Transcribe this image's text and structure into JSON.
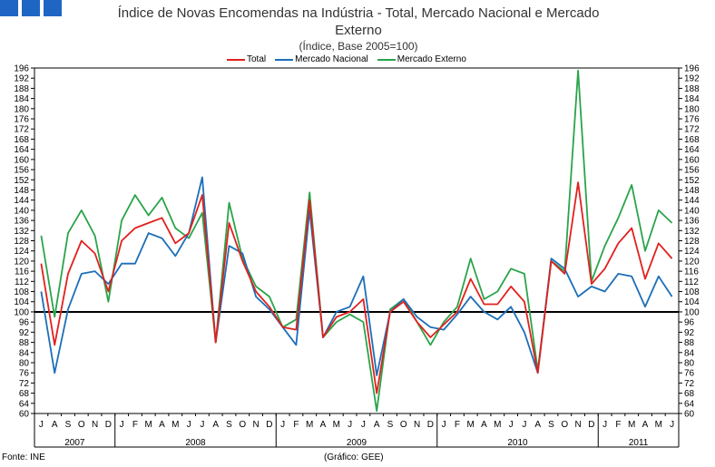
{
  "header": {
    "title_line1": "Índice de Novas Encomendas na Indústria - Total, Mercado Nacional e Mercado",
    "title_line2": "Externo",
    "subtitle": "(Índice, Base 2005=100)"
  },
  "footer": {
    "source": "Fonte: INE",
    "credit": "(Gráfico: GEE)"
  },
  "colors": {
    "logo": "#1f66c4"
  },
  "chart_data": {
    "type": "line",
    "title": "Índice de Novas Encomendas na Indústria - Total, Mercado Nacional e Mercado Externo",
    "ylim": [
      60,
      196
    ],
    "ytick_step": 4,
    "reference_line": 100,
    "month_labels": [
      "J",
      "A",
      "S",
      "O",
      "N",
      "D",
      "J",
      "F",
      "M",
      "A",
      "M",
      "J",
      "J",
      "A",
      "S",
      "O",
      "N",
      "D",
      "J",
      "F",
      "M",
      "A",
      "M",
      "J",
      "J",
      "A",
      "S",
      "O",
      "N",
      "D",
      "J",
      "F",
      "M",
      "A",
      "M",
      "J",
      "J",
      "A",
      "S",
      "O",
      "N",
      "D",
      "J",
      "F",
      "M",
      "A",
      "M",
      "J"
    ],
    "year_groups": [
      {
        "label": "2007",
        "count": 6
      },
      {
        "label": "2008",
        "count": 12
      },
      {
        "label": "2009",
        "count": 12
      },
      {
        "label": "2010",
        "count": 12
      },
      {
        "label": "2011",
        "count": 6
      }
    ],
    "series": [
      {
        "name": "Total",
        "color": "#e0211e",
        "values": [
          119,
          87,
          115,
          128,
          123,
          108,
          128,
          133,
          135,
          137,
          127,
          131,
          146,
          88,
          135,
          120,
          108,
          102,
          94,
          93,
          144,
          90,
          98,
          100,
          105,
          68,
          100,
          104,
          96,
          90,
          95,
          100,
          113,
          103,
          103,
          110,
          104,
          76,
          120,
          115,
          151,
          111,
          117,
          127,
          133,
          113,
          127,
          121
        ]
      },
      {
        "name": "Mercado Nacional",
        "color": "#1c6fb8",
        "values": [
          108,
          76,
          101,
          115,
          116,
          111,
          119,
          119,
          131,
          129,
          122,
          131,
          153,
          88,
          126,
          123,
          106,
          101,
          94,
          87,
          140,
          90,
          100,
          102,
          114,
          75,
          100,
          105,
          98,
          94,
          93,
          99,
          106,
          100,
          97,
          102,
          92,
          76,
          121,
          117,
          106,
          110,
          108,
          115,
          114,
          102,
          114,
          106
        ]
      },
      {
        "name": "Mercado Externo",
        "color": "#2aa44a",
        "values": [
          130,
          98,
          131,
          140,
          130,
          104,
          136,
          146,
          138,
          145,
          133,
          129,
          139,
          88,
          143,
          121,
          110,
          106,
          94,
          97,
          147,
          90,
          96,
          99,
          96,
          61,
          101,
          105,
          96,
          87,
          96,
          102,
          121,
          105,
          108,
          117,
          115,
          77,
          120,
          116,
          195,
          112,
          126,
          137,
          150,
          124,
          140,
          135
        ]
      }
    ]
  }
}
